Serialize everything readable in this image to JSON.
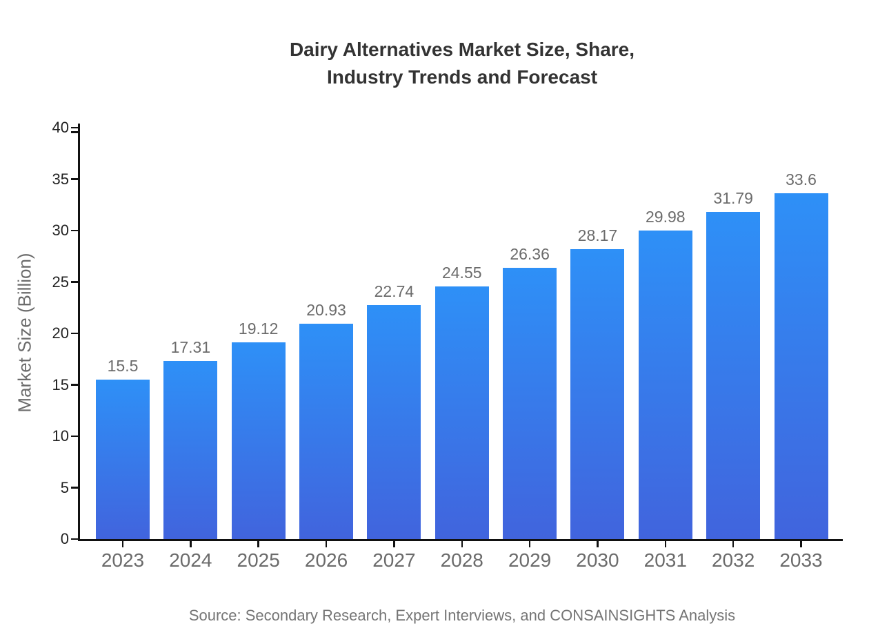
{
  "title": {
    "line1": "Dairy Alternatives Market Size, Share,",
    "line2": "Industry Trends and Forecast"
  },
  "source": "Source: Secondary Research, Expert Interviews, and CONSAINSIGHTS Analysis",
  "chart_data": {
    "type": "bar",
    "title": "Dairy Alternatives Market Size, Share, Industry Trends and Forecast",
    "categories": [
      "2023",
      "2024",
      "2025",
      "2026",
      "2027",
      "2028",
      "2029",
      "2030",
      "2031",
      "2032",
      "2033"
    ],
    "values": [
      15.5,
      17.31,
      19.12,
      20.93,
      22.74,
      24.55,
      26.36,
      28.17,
      29.98,
      31.79,
      33.6
    ],
    "value_labels": [
      "15.5",
      "17.31",
      "19.12",
      "20.93",
      "22.74",
      "24.55",
      "26.36",
      "28.17",
      "29.98",
      "31.79",
      "33.6"
    ],
    "xlabel": "",
    "ylabel": "Market Size (Billion)",
    "ylim": [
      0,
      40
    ],
    "ytick_step": 5,
    "yticks": [
      0,
      5,
      10,
      15,
      20,
      25,
      30,
      35,
      40
    ],
    "grid": false,
    "legend": "none",
    "bar_gradient_top": "#2E90F7",
    "bar_gradient_bottom": "#4164DD",
    "axis_color": "#111111",
    "ytick_label_color": "#222222",
    "xtick_label_color": "#6b6b6b",
    "value_label_color": "#6b6b6b",
    "title_color": "#333333",
    "source_color": "#757575"
  }
}
